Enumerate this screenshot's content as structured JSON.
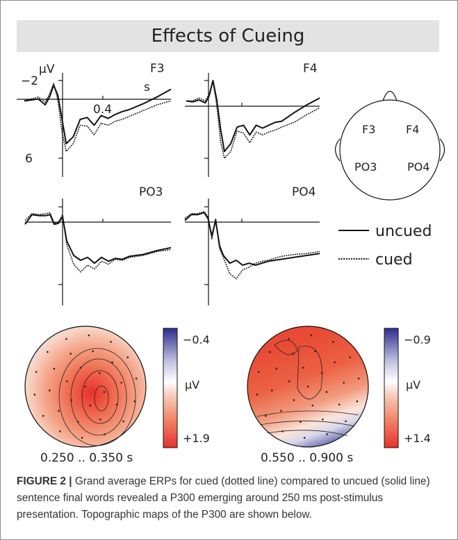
{
  "banner": {
    "title": "Effects of Cueing"
  },
  "erp": {
    "y_unit": "µV",
    "y_tick_top": "−2",
    "y_tick_bottom": "6",
    "x_unit": "s",
    "x_tick": "0.4",
    "legend_uncued": "uncued",
    "legend_cued": "cued"
  },
  "head": {
    "electrodes": [
      "F3",
      "F4",
      "PO3",
      "PO4"
    ]
  },
  "topomaps": [
    {
      "time_window": "0.250 .. 0.350 s",
      "cbar_min": "−0.4",
      "cbar_max": "+1.9",
      "cbar_unit": "µV"
    },
    {
      "time_window": "0.550 .. 0.900 s",
      "cbar_min": "−0.9",
      "cbar_max": "+1.4",
      "cbar_unit": "µV"
    }
  ],
  "colors": {
    "line": "#111111",
    "positive": "#e8302c",
    "negative": "#2c2e8c",
    "banner": "#e3e3e3"
  },
  "caption": {
    "label": "FIGURE 2 |",
    "text": " Grand average ERPs for cued (dotted line) compared to uncued (solid line) sentence final words revealed a P300 emerging around 250 ms post-stimulus presentation. Topographic maps of the P300 are shown below."
  },
  "chart_data": [
    {
      "type": "line",
      "title": "F3",
      "xlabel": "s",
      "ylabel": "µV",
      "ylim": [
        -2,
        6
      ],
      "y_inverted": true,
      "x": [
        -0.15,
        -0.1,
        -0.05,
        0,
        0.03,
        0.06,
        0.09,
        0.12,
        0.15,
        0.2,
        0.25,
        0.3,
        0.35,
        0.4,
        0.45,
        0.5,
        0.55,
        0.6,
        0.7,
        0.8,
        0.9
      ],
      "series": [
        {
          "name": "uncued",
          "values": [
            0.1,
            0.0,
            -0.1,
            0.5,
            -0.3,
            -1.5,
            -0.5,
            2.0,
            4.5,
            3.8,
            2.0,
            1.8,
            2.6,
            1.6,
            1.9,
            1.5,
            1.2,
            1.0,
            0.4,
            -0.3,
            -1.1
          ]
        },
        {
          "name": "cued",
          "values": [
            0.1,
            -0.1,
            -0.3,
            0.2,
            -0.6,
            -1.7,
            0.0,
            3.3,
            5.3,
            4.5,
            2.6,
            2.7,
            3.6,
            2.4,
            2.6,
            2.2,
            2.0,
            1.7,
            1.1,
            0.5,
            0.1
          ]
        }
      ]
    },
    {
      "type": "line",
      "title": "F4",
      "ylim": [
        -2,
        6
      ],
      "y_inverted": true,
      "x": [
        -0.15,
        -0.1,
        -0.05,
        0,
        0.03,
        0.06,
        0.09,
        0.12,
        0.15,
        0.2,
        0.25,
        0.3,
        0.35,
        0.4,
        0.45,
        0.5,
        0.55,
        0.6,
        0.7,
        0.8,
        0.9
      ],
      "series": [
        {
          "name": "uncued",
          "values": [
            0.1,
            0.2,
            0.0,
            0.3,
            -0.4,
            -2.0,
            0.0,
            3.0,
            5.3,
            4.5,
            2.8,
            2.6,
            3.6,
            2.6,
            2.9,
            2.6,
            2.3,
            2.2,
            1.3,
            0.5,
            -0.2
          ]
        },
        {
          "name": "cued",
          "values": [
            0.1,
            0.1,
            -0.2,
            0.1,
            -0.6,
            -1.9,
            0.5,
            4.3,
            6.0,
            5.3,
            3.2,
            3.4,
            4.4,
            3.3,
            3.6,
            3.3,
            3.1,
            2.8,
            2.3,
            1.5,
            0.8
          ]
        }
      ]
    },
    {
      "type": "line",
      "title": "PO3",
      "ylim": [
        -2,
        6
      ],
      "y_inverted": true,
      "x": [
        -0.15,
        -0.1,
        -0.05,
        0,
        0.03,
        0.06,
        0.09,
        0.12,
        0.15,
        0.2,
        0.25,
        0.3,
        0.35,
        0.4,
        0.45,
        0.5,
        0.55,
        0.6,
        0.7,
        0.8,
        0.9
      ],
      "series": [
        {
          "name": "uncued",
          "values": [
            -0.2,
            -1.2,
            -1.1,
            -1.1,
            -1.2,
            -0.2,
            -0.3,
            -1.0,
            1.5,
            3.0,
            3.5,
            3.2,
            3.8,
            3.2,
            3.6,
            3.3,
            3.4,
            3.1,
            2.9,
            2.5,
            2.2
          ]
        },
        {
          "name": "cued",
          "values": [
            -0.6,
            -1.3,
            -1.2,
            -1.3,
            -1.4,
            -0.3,
            -0.4,
            -1.2,
            1.9,
            3.9,
            4.7,
            4.0,
            4.4,
            3.6,
            3.9,
            3.4,
            3.5,
            3.2,
            3.0,
            2.6,
            2.4
          ]
        }
      ]
    },
    {
      "type": "line",
      "title": "PO4",
      "ylim": [
        -2,
        6
      ],
      "y_inverted": true,
      "x": [
        -0.15,
        -0.1,
        -0.05,
        0,
        0.03,
        0.06,
        0.09,
        0.12,
        0.15,
        0.2,
        0.25,
        0.3,
        0.35,
        0.4,
        0.45,
        0.5,
        0.55,
        0.6,
        0.7,
        0.8,
        0.9
      ],
      "series": [
        {
          "name": "uncued",
          "values": [
            -0.6,
            -1.2,
            -1.2,
            -1.4,
            -0.8,
            1.0,
            -0.6,
            2.0,
            3.0,
            3.8,
            3.5,
            4.0,
            3.8,
            4.0,
            3.8,
            3.6,
            3.5,
            3.4,
            3.2,
            3.0,
            2.8
          ]
        },
        {
          "name": "cued",
          "values": [
            -0.8,
            -1.3,
            -1.3,
            -1.5,
            -1.0,
            1.3,
            -0.8,
            2.3,
            3.2,
            4.9,
            5.4,
            4.5,
            4.2,
            3.8,
            3.6,
            3.5,
            3.3,
            3.1,
            2.9,
            2.8,
            2.6
          ]
        }
      ]
    }
  ]
}
